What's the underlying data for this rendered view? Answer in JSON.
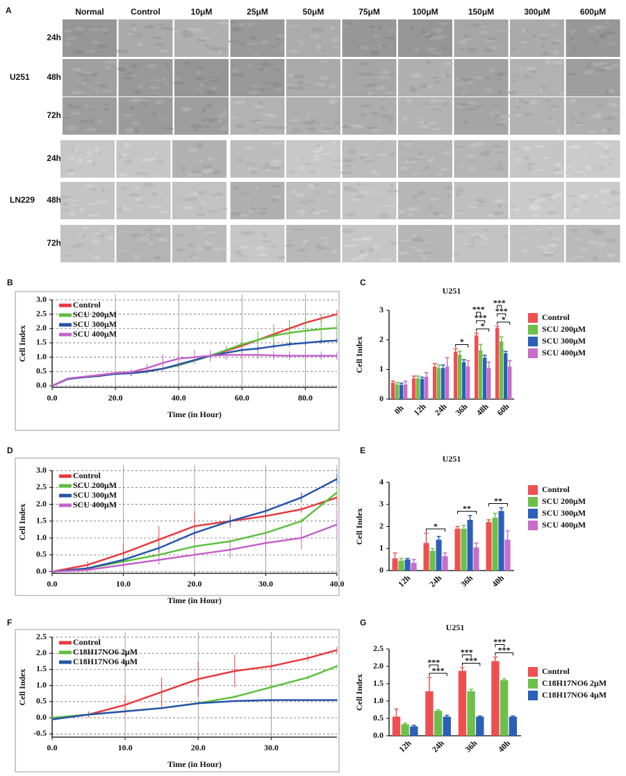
{
  "figure_a": {
    "panel": "A",
    "columns": [
      "Normal",
      "Control",
      "10μM",
      "25μM",
      "50μM",
      "75μM",
      "100μM",
      "150μM",
      "300μM",
      "600μM"
    ],
    "groups": [
      {
        "name": "U251",
        "rows": [
          "24h",
          "48h",
          "72h"
        ]
      },
      {
        "name": "LN229",
        "rows": [
          "24h",
          "48h",
          "72h"
        ]
      }
    ]
  },
  "chart_data": [
    {
      "panel": "B",
      "type": "line",
      "xlabel": "Time (in Hour)",
      "ylabel": "Cell Index",
      "grid": true,
      "x": [
        0,
        5,
        10,
        15,
        20,
        25,
        30,
        35,
        40,
        45,
        50,
        55,
        60,
        65,
        70,
        75,
        80,
        85,
        90
      ],
      "xlim": [
        0,
        90
      ],
      "xticks": [
        {
          "value": 0,
          "label": "0.0"
        },
        {
          "value": 20,
          "label": "20.0"
        },
        {
          "value": 40,
          "label": "40.0"
        },
        {
          "value": 60,
          "label": "60.0"
        },
        {
          "value": 80,
          "label": "80.0"
        }
      ],
      "ylim": [
        -0.05,
        3.0
      ],
      "yticks": [
        {
          "value": 0,
          "label": "0.0"
        },
        0.5,
        {
          "value": 1,
          "label": "1.0"
        },
        1.5,
        {
          "value": 2,
          "label": "2.0"
        },
        2.5,
        {
          "value": 3,
          "label": "3.0"
        }
      ],
      "series": [
        {
          "name": "Control",
          "color": "#e8383d",
          "values": [
            0,
            0.25,
            0.3,
            0.35,
            0.42,
            0.45,
            0.52,
            0.6,
            0.72,
            0.88,
            1.05,
            1.22,
            1.4,
            1.6,
            1.8,
            2.0,
            2.2,
            2.35,
            2.5
          ],
          "errors": [
            0.02,
            0.03,
            0.03,
            0.04,
            0.05,
            0.1,
            0.06,
            0.06,
            0.07,
            0.07,
            0.08,
            0.08,
            0.1,
            0.1,
            0.12,
            0.12,
            0.15,
            0.15,
            0.15
          ]
        },
        {
          "name": "SCU 200μM",
          "color": "#5cbf3c",
          "values": [
            0,
            0.24,
            0.3,
            0.35,
            0.42,
            0.44,
            0.5,
            0.6,
            0.72,
            0.88,
            1.05,
            1.25,
            1.45,
            1.6,
            1.75,
            1.85,
            1.92,
            1.98,
            2.02
          ],
          "errors": [
            0.02,
            0.03,
            0.03,
            0.04,
            0.05,
            0.1,
            0.06,
            0.06,
            0.07,
            0.08,
            0.1,
            0.15,
            0.2,
            0.3,
            0.4,
            0.45,
            0.45,
            0.45,
            0.45
          ]
        },
        {
          "name": "SCU 300μM",
          "color": "#2553a8",
          "values": [
            0,
            0.24,
            0.3,
            0.35,
            0.42,
            0.44,
            0.5,
            0.6,
            0.75,
            0.9,
            1.05,
            1.15,
            1.25,
            1.3,
            1.38,
            1.45,
            1.5,
            1.55,
            1.58
          ],
          "errors": [
            0.02,
            0.03,
            0.03,
            0.04,
            0.05,
            0.1,
            0.06,
            0.06,
            0.07,
            0.07,
            0.08,
            0.08,
            0.08,
            0.08,
            0.08,
            0.08,
            0.08,
            0.08,
            0.08
          ]
        },
        {
          "name": "SCU 400μM",
          "color": "#c462c8",
          "values": [
            0,
            0.26,
            0.32,
            0.38,
            0.45,
            0.48,
            0.62,
            0.8,
            0.95,
            1.0,
            1.05,
            1.08,
            1.08,
            1.08,
            1.06,
            1.05,
            1.05,
            1.05,
            1.05
          ],
          "errors": [
            0.02,
            0.03,
            0.03,
            0.04,
            0.05,
            0.1,
            0.15,
            0.3,
            0.3,
            0.25,
            0.2,
            0.18,
            0.15,
            0.15,
            0.15,
            0.15,
            0.15,
            0.15,
            0.15
          ]
        }
      ]
    },
    {
      "panel": "C",
      "type": "bar",
      "title": "U251",
      "ylabel": "Cell Index",
      "categories": [
        "0h",
        "12h",
        "24h",
        "36h",
        "48h",
        "60h"
      ],
      "ylim": [
        0,
        3
      ],
      "yticks": [
        0,
        1,
        2,
        3
      ],
      "series": [
        {
          "name": "Control",
          "color": "#ef4f50",
          "values": [
            0.55,
            0.7,
            1.1,
            1.6,
            2.15,
            2.4
          ],
          "errors": [
            0.06,
            0.08,
            0.1,
            0.1,
            0.08,
            0.06
          ]
        },
        {
          "name": "SCU 200μM",
          "color": "#6cc04a",
          "values": [
            0.5,
            0.7,
            1.05,
            1.5,
            1.65,
            1.95
          ],
          "errors": [
            0.06,
            0.08,
            0.1,
            0.12,
            0.2,
            0.15
          ]
        },
        {
          "name": "SCU 300μM",
          "color": "#2c5fb8",
          "values": [
            0.48,
            0.68,
            1.05,
            1.25,
            1.4,
            1.55
          ],
          "errors": [
            0.06,
            0.06,
            0.1,
            0.08,
            0.08,
            0.06
          ]
        },
        {
          "name": "SCU 400μM",
          "color": "#c86dc8",
          "values": [
            0.5,
            0.75,
            1.1,
            1.1,
            1.05,
            1.1
          ],
          "errors": [
            0.1,
            0.15,
            0.3,
            0.2,
            0.2,
            0.2
          ]
        }
      ],
      "annotations": [
        {
          "category": "36h",
          "text": "*"
        },
        {
          "category": "48h",
          "text": "*"
        },
        {
          "category": "48h",
          "text": "***"
        },
        {
          "category": "48h",
          "text": "***"
        },
        {
          "category": "60h",
          "text": "*"
        },
        {
          "category": "60h",
          "text": "***"
        },
        {
          "category": "60h",
          "text": "***"
        }
      ]
    },
    {
      "panel": "D",
      "type": "line",
      "xlabel": "Time (in Hour)",
      "ylabel": "Cell Index",
      "grid": true,
      "x": [
        0,
        5,
        10,
        15,
        20,
        25,
        30,
        35,
        40
      ],
      "xlim": [
        0,
        40
      ],
      "xticks": [
        {
          "value": 0,
          "label": "0.0"
        },
        {
          "value": 10,
          "label": "10.0"
        },
        {
          "value": 20,
          "label": "20.0"
        },
        {
          "value": 30,
          "label": "30.0"
        },
        {
          "value": 40,
          "label": "40.0"
        }
      ],
      "ylim": [
        -0.05,
        3.0
      ],
      "yticks": [
        {
          "value": 0,
          "label": "0.0"
        },
        0.5,
        {
          "value": 1,
          "label": "1.0"
        },
        1.5,
        {
          "value": 2,
          "label": "2.0"
        },
        2.5,
        {
          "value": 3,
          "label": "3.0"
        }
      ],
      "series": [
        {
          "name": "Control",
          "color": "#e8383d",
          "values": [
            0,
            0.2,
            0.55,
            0.95,
            1.35,
            1.5,
            1.65,
            1.85,
            2.2
          ],
          "errors": [
            0.02,
            0.1,
            0.3,
            0.4,
            0.45,
            0.2,
            0.1,
            0.1,
            0.15
          ]
        },
        {
          "name": "SCU 200μM",
          "color": "#5cbf3c",
          "values": [
            0,
            0.1,
            0.3,
            0.5,
            0.75,
            0.9,
            1.15,
            1.5,
            2.35
          ],
          "errors": [
            0.02,
            0.03,
            0.05,
            0.05,
            0.05,
            0.06,
            0.08,
            0.1,
            0.12
          ]
        },
        {
          "name": "SCU 300μM",
          "color": "#2553a8",
          "values": [
            0,
            0.1,
            0.35,
            0.7,
            1.15,
            1.5,
            1.8,
            2.2,
            2.75
          ],
          "errors": [
            0.02,
            0.05,
            0.08,
            0.1,
            0.12,
            0.12,
            0.15,
            0.15,
            0.15
          ]
        },
        {
          "name": "SCU 400μM",
          "color": "#c462c8",
          "values": [
            0,
            0.05,
            0.2,
            0.35,
            0.5,
            0.65,
            0.85,
            1.0,
            1.4
          ],
          "errors": [
            0.02,
            0.05,
            0.1,
            0.15,
            0.2,
            0.25,
            0.3,
            0.35,
            0.45
          ]
        }
      ]
    },
    {
      "panel": "E",
      "type": "bar",
      "title": "U251",
      "ylabel": "Cell Index",
      "categories": [
        "12h",
        "24h",
        "36h",
        "40h"
      ],
      "ylim": [
        0,
        4
      ],
      "yticks": [
        0,
        1,
        2,
        3,
        4
      ],
      "series": [
        {
          "name": "Control",
          "color": "#ef4f50",
          "values": [
            0.55,
            1.25,
            1.9,
            2.2
          ],
          "errors": [
            0.25,
            0.45,
            0.1,
            0.1
          ]
        },
        {
          "name": "SCU 200μM",
          "color": "#6cc04a",
          "values": [
            0.45,
            0.9,
            1.9,
            2.4
          ],
          "errors": [
            0.1,
            0.1,
            0.15,
            0.2
          ]
        },
        {
          "name": "SCU 300μM",
          "color": "#2c5fb8",
          "values": [
            0.5,
            1.4,
            2.3,
            2.7
          ],
          "errors": [
            0.05,
            0.15,
            0.2,
            0.15
          ]
        },
        {
          "name": "SCU 400μM",
          "color": "#c86dc8",
          "values": [
            0.35,
            0.65,
            1.05,
            1.4
          ],
          "errors": [
            0.15,
            0.15,
            0.2,
            0.4
          ]
        }
      ],
      "annotations": [
        {
          "category": "24h",
          "text": "*"
        },
        {
          "category": "36h",
          "text": "**"
        },
        {
          "category": "40h",
          "text": "**"
        }
      ]
    },
    {
      "panel": "F",
      "type": "line",
      "xlabel": "Time (in Hour)",
      "ylabel": "Cell Index",
      "grid": true,
      "x": [
        0,
        5,
        10,
        15,
        20,
        25,
        30,
        35,
        39
      ],
      "xlim": [
        0,
        39
      ],
      "xticks": [
        {
          "value": 0,
          "label": "0.0"
        },
        {
          "value": 10,
          "label": "10.0"
        },
        {
          "value": 20,
          "label": "20.0"
        },
        {
          "value": 30,
          "label": "30.0"
        }
      ],
      "ylim": [
        -0.6,
        2.5
      ],
      "yticks": [
        -0.5,
        {
          "value": 0,
          "label": "0.0"
        },
        0.5,
        {
          "value": 1,
          "label": "1.0"
        },
        1.5,
        {
          "value": 2,
          "label": "2.0"
        },
        2.5
      ],
      "series": [
        {
          "name": "Control",
          "color": "#e8383d",
          "values": [
            0,
            0.1,
            0.4,
            0.8,
            1.2,
            1.45,
            1.6,
            1.85,
            2.1
          ],
          "errors": [
            0.02,
            0.1,
            0.3,
            0.45,
            0.55,
            0.5,
            0.1,
            0.1,
            0.1
          ]
        },
        {
          "name": "C18H17NO6 2μM",
          "color": "#5cbf3c",
          "values": [
            0,
            0.1,
            0.2,
            0.3,
            0.45,
            0.65,
            0.95,
            1.25,
            1.6
          ],
          "errors": [
            0.02,
            0.03,
            0.03,
            0.04,
            0.04,
            0.05,
            0.06,
            0.06,
            0.06
          ]
        },
        {
          "name": "C18H17NO6 4μM",
          "color": "#2553a8",
          "values": [
            -0.05,
            0.1,
            0.2,
            0.3,
            0.45,
            0.52,
            0.55,
            0.55,
            0.55
          ],
          "errors": [
            0.02,
            0.02,
            0.03,
            0.03,
            0.03,
            0.03,
            0.03,
            0.03,
            0.03
          ]
        }
      ]
    },
    {
      "panel": "G",
      "type": "bar",
      "title": "U251",
      "ylabel": "Cell Index",
      "categories": [
        "12h",
        "24h",
        "36h",
        "40h"
      ],
      "ylim": [
        0,
        2.5
      ],
      "yticks": [
        {
          "value": 0,
          "label": "0.0"
        },
        0.5,
        {
          "value": 1,
          "label": "1.0"
        },
        1.5,
        {
          "value": 2,
          "label": "2.0"
        },
        2.5
      ],
      "series": [
        {
          "name": "Control",
          "color": "#ef4f50",
          "values": [
            0.55,
            1.28,
            1.87,
            2.15
          ],
          "errors": [
            0.22,
            0.4,
            0.1,
            0.12
          ]
        },
        {
          "name": "C18H17NO6 2μM",
          "color": "#6cc04a",
          "values": [
            0.33,
            0.72,
            1.28,
            1.6
          ],
          "errors": [
            0.03,
            0.03,
            0.06,
            0.04
          ]
        },
        {
          "name": "C18H17NO6 4μM",
          "color": "#2c5fb8",
          "values": [
            0.27,
            0.55,
            0.55,
            0.55
          ],
          "errors": [
            0.03,
            0.04,
            0.02,
            0.02
          ]
        }
      ],
      "annotations": [
        {
          "category": "24h",
          "text": "***"
        },
        {
          "category": "24h",
          "text": "***"
        },
        {
          "category": "36h",
          "text": "***"
        },
        {
          "category": "36h",
          "text": "***"
        },
        {
          "category": "40h",
          "text": "***"
        },
        {
          "category": "40h",
          "text": "***"
        }
      ]
    }
  ]
}
